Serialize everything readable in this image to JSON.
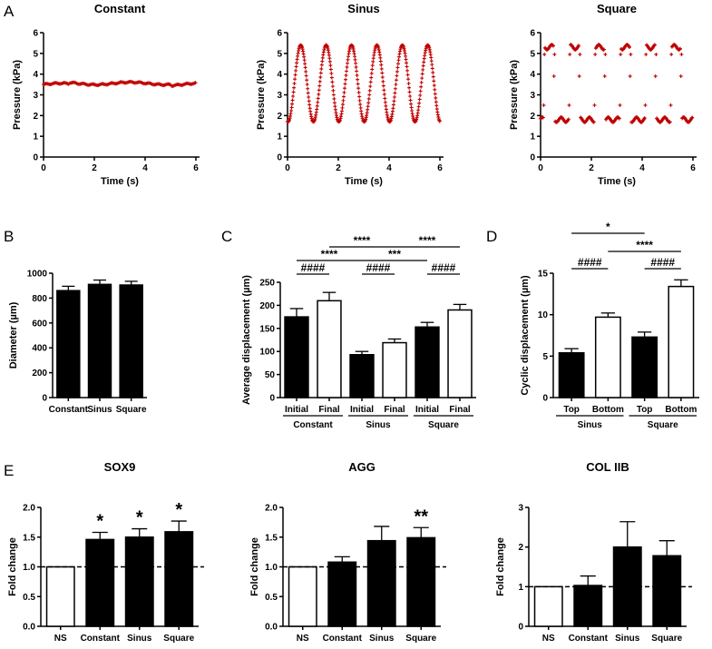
{
  "panel_labels": {
    "A": "A",
    "B": "B",
    "C": "C",
    "D": "D",
    "E": "E"
  },
  "chart_data": [
    {
      "id": "A1",
      "type": "scatter",
      "title": "Constant",
      "xlabel": "Time (s)",
      "ylabel": "Pressure (kPa)",
      "xlim": [
        0,
        6
      ],
      "ylim": [
        0,
        6
      ],
      "xticks": [
        "0",
        "2",
        "4",
        "6"
      ],
      "yticks": [
        "0",
        "1",
        "2",
        "3",
        "4",
        "5",
        "6"
      ],
      "series": [
        {
          "name": "Constant",
          "color": "#c00000",
          "pattern": "constant",
          "level": 3.5
        }
      ]
    },
    {
      "id": "A2",
      "type": "scatter",
      "title": "Sinus",
      "xlabel": "Time (s)",
      "ylabel": "Pressure (kPa)",
      "xlim": [
        0,
        6
      ],
      "ylim": [
        0,
        6
      ],
      "xticks": [
        "0",
        "2",
        "4",
        "6"
      ],
      "yticks": [
        "0",
        "1",
        "2",
        "3",
        "4",
        "5",
        "6"
      ],
      "series": [
        {
          "name": "Sinus",
          "color": "#c00000",
          "pattern": "sinus",
          "min": 1.7,
          "max": 5.4,
          "period": 1.0
        }
      ]
    },
    {
      "id": "A3",
      "type": "scatter",
      "title": "Square",
      "xlabel": "Time (s)",
      "ylabel": "Pressure (kPa)",
      "xlim": [
        0,
        6
      ],
      "ylim": [
        0,
        6
      ],
      "xticks": [
        "0",
        "2",
        "4",
        "6"
      ],
      "yticks": [
        "0",
        "1",
        "2",
        "3",
        "4",
        "5",
        "6"
      ],
      "series": [
        {
          "name": "Square",
          "color": "#c00000",
          "pattern": "square",
          "low": 1.8,
          "high": 5.3,
          "period": 1.0
        }
      ]
    },
    {
      "id": "B",
      "type": "bar",
      "title": "",
      "ylabel": "Diameter (µm)",
      "ylim": [
        0,
        1000
      ],
      "yticks": [
        "0",
        "200",
        "400",
        "600",
        "800",
        "1000"
      ],
      "categories": [
        "Constant",
        "Sinus",
        "Square"
      ],
      "values": [
        860,
        910,
        905
      ],
      "errors": [
        35,
        35,
        30
      ],
      "fills": [
        "#000000",
        "#000000",
        "#000000"
      ]
    },
    {
      "id": "C",
      "type": "bar",
      "title": "",
      "ylabel": "Average displacement (µm)",
      "ylim": [
        0,
        250
      ],
      "yticks": [
        "0",
        "50",
        "100",
        "150",
        "200",
        "250"
      ],
      "categories": [
        "Initial",
        "Final",
        "Initial",
        "Final",
        "Initial",
        "Final"
      ],
      "groups": [
        "Constant",
        "Sinus",
        "Square"
      ],
      "values": [
        175,
        210,
        93,
        119,
        153,
        190
      ],
      "errors": [
        18,
        18,
        7,
        8,
        10,
        12
      ],
      "fills": [
        "#000000",
        "#ffffff",
        "#000000",
        "#ffffff",
        "#000000",
        "#ffffff"
      ],
      "annotations": [
        {
          "from": 0,
          "to": 1,
          "label": "####"
        },
        {
          "from": 2,
          "to": 3,
          "label": "####"
        },
        {
          "from": 4,
          "to": 5,
          "label": "####"
        },
        {
          "from": 0,
          "to": 2,
          "label": "****"
        },
        {
          "from": 2,
          "to": 4,
          "label": "***"
        },
        {
          "from": 1,
          "to": 3,
          "label": "****"
        },
        {
          "from": 3,
          "to": 5,
          "label": "****"
        }
      ]
    },
    {
      "id": "D",
      "type": "bar",
      "title": "",
      "ylabel": "Cyclic displacement (µm)",
      "ylim": [
        0,
        15
      ],
      "yticks": [
        "0",
        "5",
        "10",
        "15"
      ],
      "categories": [
        "Top",
        "Bottom",
        "Top",
        "Bottom"
      ],
      "groups": [
        "Sinus",
        "Square"
      ],
      "values": [
        5.4,
        9.7,
        7.3,
        13.4
      ],
      "errors": [
        0.5,
        0.5,
        0.6,
        0.8
      ],
      "fills": [
        "#000000",
        "#ffffff",
        "#000000",
        "#ffffff"
      ],
      "annotations": [
        {
          "from": 0,
          "to": 1,
          "label": "####"
        },
        {
          "from": 2,
          "to": 3,
          "label": "####"
        },
        {
          "from": 1,
          "to": 3,
          "label": "****"
        },
        {
          "from": 0,
          "to": 2,
          "label": "*"
        }
      ]
    },
    {
      "id": "E1",
      "type": "bar",
      "title": "SOX9",
      "ylabel": "Fold change",
      "ylim": [
        0,
        2.0
      ],
      "yticks": [
        "0.0",
        "0.5",
        "1.0",
        "1.5",
        "2.0"
      ],
      "categories": [
        "NS",
        "Constant",
        "Sinus",
        "Square"
      ],
      "values": [
        1.0,
        1.46,
        1.5,
        1.59
      ],
      "errors": [
        0,
        0.12,
        0.14,
        0.18
      ],
      "fills": [
        "#ffffff",
        "#000000",
        "#000000",
        "#000000"
      ],
      "stars": [
        "",
        "*",
        "*",
        "*"
      ],
      "reference": 1.0
    },
    {
      "id": "E2",
      "type": "bar",
      "title": "AGG",
      "ylabel": "Fold change",
      "ylim": [
        0,
        2.0
      ],
      "yticks": [
        "0.0",
        "0.5",
        "1.0",
        "1.5",
        "2.0"
      ],
      "categories": [
        "NS",
        "Constant",
        "Sinus",
        "Square"
      ],
      "values": [
        1.0,
        1.08,
        1.44,
        1.49
      ],
      "errors": [
        0,
        0.09,
        0.24,
        0.17
      ],
      "fills": [
        "#ffffff",
        "#000000",
        "#000000",
        "#000000"
      ],
      "stars": [
        "",
        "",
        "",
        "**"
      ],
      "reference": 1.0
    },
    {
      "id": "E3",
      "type": "bar",
      "title": "COL IIB",
      "ylabel": "Fold change",
      "ylim": [
        0,
        3
      ],
      "yticks": [
        "0",
        "1",
        "2",
        "3"
      ],
      "categories": [
        "NS",
        "Constant",
        "Sinus",
        "Square"
      ],
      "values": [
        1.0,
        1.03,
        2.0,
        1.78
      ],
      "errors": [
        0,
        0.24,
        0.64,
        0.38
      ],
      "fills": [
        "#ffffff",
        "#000000",
        "#000000",
        "#000000"
      ],
      "stars": [
        "",
        "",
        "",
        ""
      ],
      "reference": 1.0
    }
  ]
}
